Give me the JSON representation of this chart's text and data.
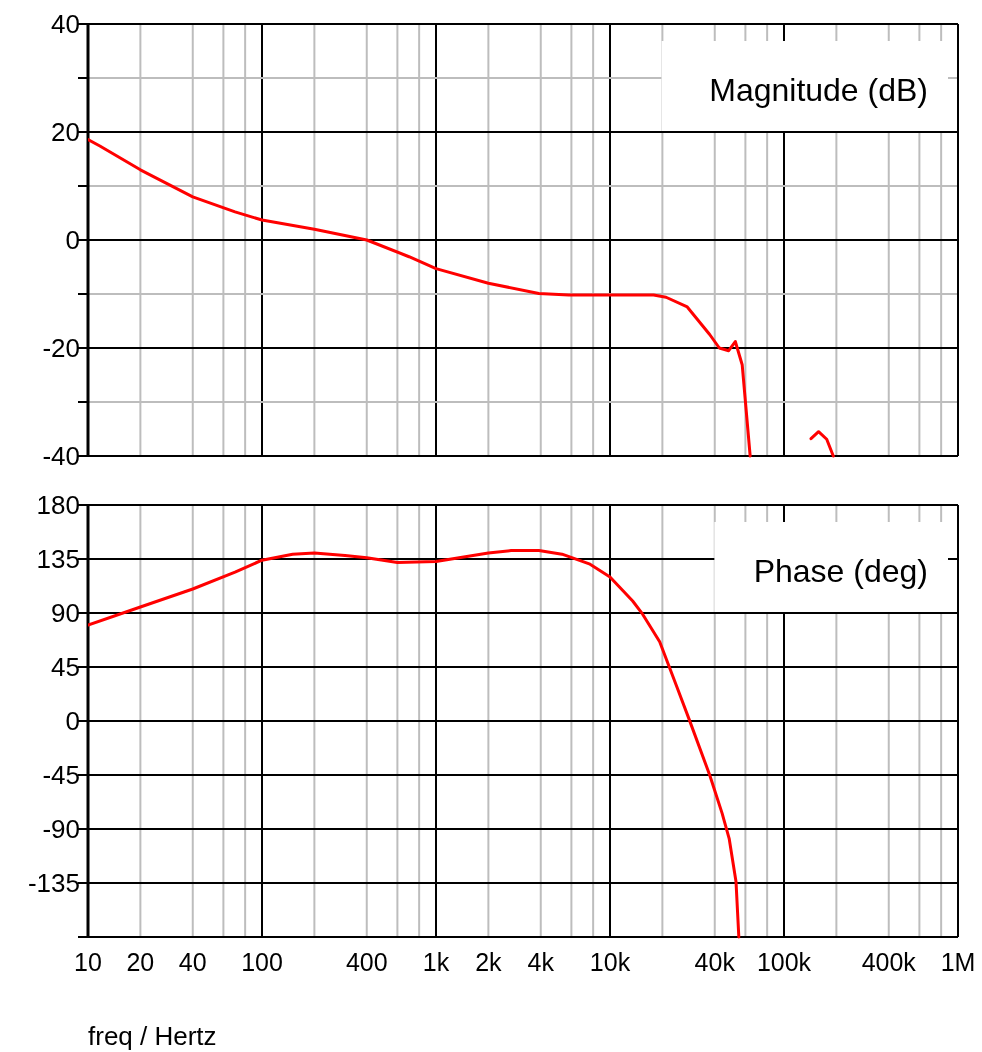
{
  "chart_data": [
    {
      "type": "line",
      "title": "Magnitude (dB)",
      "log": "x",
      "grid": true,
      "tick_labels": "y",
      "xlim": [
        10,
        1000000
      ],
      "ylim": [
        -40,
        40
      ],
      "xticks": [
        {
          "value": 10,
          "label": null
        },
        {
          "value": 20,
          "label": null
        },
        {
          "value": 40,
          "label": null
        },
        {
          "value": 60,
          "label": null
        },
        {
          "value": 80,
          "label": null
        },
        {
          "value": 100,
          "label": null
        },
        {
          "value": 200,
          "label": null
        },
        {
          "value": 400,
          "label": null
        },
        {
          "value": 600,
          "label": null
        },
        {
          "value": 800,
          "label": null
        },
        {
          "value": 1000,
          "label": null
        },
        {
          "value": 2000,
          "label": null
        },
        {
          "value": 4000,
          "label": null
        },
        {
          "value": 6000,
          "label": null
        },
        {
          "value": 8000,
          "label": null
        },
        {
          "value": 10000,
          "label": null
        },
        {
          "value": 20000,
          "label": null
        },
        {
          "value": 40000,
          "label": null
        },
        {
          "value": 60000,
          "label": null
        },
        {
          "value": 80000,
          "label": null
        },
        {
          "value": 100000,
          "label": null
        },
        {
          "value": 200000,
          "label": null
        },
        {
          "value": 400000,
          "label": null
        },
        {
          "value": 600000,
          "label": null
        },
        {
          "value": 800000,
          "label": null
        },
        {
          "value": 1000000,
          "label": null
        }
      ],
      "yticks": [
        40,
        {
          "value": 30,
          "label": null
        },
        20,
        {
          "value": 10,
          "label": null
        },
        0,
        {
          "value": -10,
          "label": null
        },
        -20,
        {
          "value": -30,
          "label": null
        },
        -40
      ],
      "series": [
        {
          "color": "#ff0000",
          "x": [
            10,
            11.7,
            20,
            40,
            70,
            100,
            200,
            400,
            700,
            1000,
            2000,
            3900,
            5800,
            10000,
            17800,
            21000,
            27800,
            37400,
            42500,
            48100,
            52500,
            57500,
            63900,
            137000,
            143000,
            158000,
            176000,
            192000
          ],
          "values": [
            18.6,
            17.4,
            13.0,
            8.0,
            5.2,
            3.7,
            2.0,
            0,
            -3.1,
            -5.3,
            -8.0,
            -9.9,
            -10.2,
            -10.2,
            -10.2,
            -10.6,
            -12.4,
            -17.5,
            -20,
            -20.5,
            -18.8,
            -23.1,
            -40,
            null,
            -36.8,
            -35.5,
            -36.9,
            -40
          ]
        }
      ]
    },
    {
      "type": "line",
      "title": "Phase (deg)",
      "xlabel": "freq / Hertz",
      "log": "x",
      "grid": true,
      "xlim": [
        10,
        1000000
      ],
      "ylim": [
        -180,
        180
      ],
      "xticks": [
        {
          "value": 10,
          "label": "10"
        },
        {
          "value": 20,
          "label": "20"
        },
        {
          "value": 40,
          "label": "40"
        },
        {
          "value": 60,
          "label": null
        },
        {
          "value": 80,
          "label": null
        },
        {
          "value": 100,
          "label": "100"
        },
        {
          "value": 200,
          "label": null
        },
        {
          "value": 400,
          "label": "400"
        },
        {
          "value": 600,
          "label": null
        },
        {
          "value": 800,
          "label": null
        },
        {
          "value": 1000,
          "label": "1k"
        },
        {
          "value": 2000,
          "label": "2k"
        },
        {
          "value": 4000,
          "label": "4k"
        },
        {
          "value": 6000,
          "label": null
        },
        {
          "value": 8000,
          "label": null
        },
        {
          "value": 10000,
          "label": "10k"
        },
        {
          "value": 20000,
          "label": null
        },
        {
          "value": 40000,
          "label": "40k"
        },
        {
          "value": 60000,
          "label": null
        },
        {
          "value": 80000,
          "label": null
        },
        {
          "value": 100000,
          "label": "100k"
        },
        {
          "value": 200000,
          "label": null
        },
        {
          "value": 400000,
          "label": "400k"
        },
        {
          "value": 600000,
          "label": null
        },
        {
          "value": 800000,
          "label": null
        },
        {
          "value": 1000000,
          "label": "1M"
        }
      ],
      "yticks": [
        180,
        135,
        90,
        45,
        0,
        -45,
        -90,
        -135,
        {
          "value": -180,
          "label": null
        }
      ],
      "series": [
        {
          "color": "#ff0000",
          "x": [
            10,
            20,
            40,
            70,
            100,
            150,
            200,
            300,
            400,
            600,
            1000,
            2000,
            2700,
            3900,
            5300,
            7600,
            10000,
            13500,
            15400,
            19300,
            24000,
            28400,
            37400,
            44100,
            48400,
            53000,
            55000
          ],
          "values": [
            80,
            95,
            110,
            124,
            134,
            139,
            140,
            138,
            136,
            132,
            133,
            140,
            142,
            142,
            139,
            131,
            120,
            100,
            89,
            66,
            30,
            2,
            -45,
            -77,
            -98,
            -134,
            -180
          ]
        }
      ]
    }
  ]
}
